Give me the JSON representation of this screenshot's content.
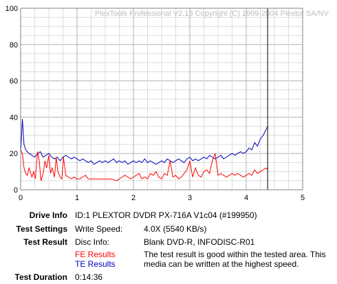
{
  "chart_data": {
    "type": "line",
    "watermark": "PlexTools Professional V2.18 Copyright (C) 1999-2004 Plextor SA/NV",
    "xlim": [
      0,
      5
    ],
    "ylim": [
      0,
      100
    ],
    "x_ticks": [
      0,
      1,
      2,
      3,
      4,
      5
    ],
    "y_ticks": [
      0,
      20,
      40,
      60,
      80,
      100
    ],
    "grid": true,
    "vertical_marker_x": 4.38,
    "series": [
      {
        "color": "#0000c0",
        "x": [
          0.0,
          0.03,
          0.06,
          0.09,
          0.12,
          0.15,
          0.2,
          0.25,
          0.3,
          0.35,
          0.4,
          0.45,
          0.5,
          0.55,
          0.6,
          0.65,
          0.7,
          0.75,
          0.8,
          0.85,
          0.9,
          0.95,
          1.0,
          1.05,
          1.1,
          1.15,
          1.2,
          1.25,
          1.3,
          1.35,
          1.4,
          1.45,
          1.5,
          1.55,
          1.6,
          1.65,
          1.7,
          1.75,
          1.8,
          1.85,
          1.9,
          1.95,
          2.0,
          2.05,
          2.1,
          2.15,
          2.2,
          2.25,
          2.3,
          2.35,
          2.4,
          2.45,
          2.5,
          2.55,
          2.6,
          2.65,
          2.7,
          2.75,
          2.8,
          2.85,
          2.9,
          2.95,
          3.0,
          3.05,
          3.1,
          3.15,
          3.2,
          3.25,
          3.3,
          3.35,
          3.4,
          3.45,
          3.5,
          3.55,
          3.6,
          3.65,
          3.7,
          3.75,
          3.8,
          3.85,
          3.9,
          3.95,
          4.0,
          4.05,
          4.1,
          4.15,
          4.2,
          4.25,
          4.3,
          4.35,
          4.38
        ],
        "y": [
          20,
          39,
          25,
          22,
          21,
          20,
          19,
          18,
          20,
          21,
          18,
          19,
          20,
          18,
          17,
          18,
          16,
          18,
          19,
          18,
          17,
          18,
          17,
          16,
          17,
          16,
          15,
          16,
          14,
          15,
          16,
          15,
          16,
          15,
          16,
          17,
          15,
          16,
          15,
          16,
          14,
          15,
          16,
          15,
          16,
          15,
          17,
          15,
          16,
          15,
          14,
          15,
          16,
          15,
          17,
          16,
          15,
          16,
          17,
          16,
          15,
          17,
          18,
          16,
          17,
          16,
          17,
          18,
          17,
          19,
          18,
          17,
          18,
          19,
          17,
          18,
          19,
          20,
          19,
          20,
          21,
          20,
          21,
          23,
          22,
          26,
          24,
          28,
          30,
          33,
          35
        ]
      },
      {
        "color": "#ff0000",
        "x": [
          0.0,
          0.03,
          0.06,
          0.09,
          0.12,
          0.15,
          0.2,
          0.23,
          0.26,
          0.3,
          0.33,
          0.36,
          0.4,
          0.43,
          0.46,
          0.5,
          0.53,
          0.56,
          0.6,
          0.63,
          0.66,
          0.7,
          0.73,
          0.76,
          0.8,
          0.85,
          0.9,
          0.95,
          1.0,
          1.05,
          1.1,
          1.15,
          1.2,
          1.25,
          1.3,
          1.4,
          1.5,
          1.6,
          1.7,
          1.75,
          1.8,
          1.85,
          1.9,
          1.95,
          2.0,
          2.05,
          2.1,
          2.15,
          2.2,
          2.25,
          2.3,
          2.35,
          2.4,
          2.45,
          2.5,
          2.55,
          2.6,
          2.65,
          2.7,
          2.75,
          2.8,
          2.85,
          2.9,
          2.95,
          3.0,
          3.05,
          3.1,
          3.15,
          3.2,
          3.25,
          3.3,
          3.35,
          3.4,
          3.45,
          3.5,
          3.55,
          3.6,
          3.65,
          3.7,
          3.75,
          3.8,
          3.85,
          3.9,
          3.95,
          4.0,
          4.05,
          4.1,
          4.15,
          4.2,
          4.25,
          4.3,
          4.35,
          4.38
        ],
        "y": [
          22,
          20,
          12,
          9,
          8,
          12,
          7,
          10,
          6,
          21,
          16,
          5,
          9,
          16,
          12,
          19,
          9,
          12,
          7,
          18,
          10,
          7,
          6,
          18,
          8,
          7,
          6,
          7,
          6,
          6,
          7,
          8,
          6,
          6,
          6,
          6,
          6,
          6,
          5,
          6,
          7,
          8,
          7,
          6,
          7,
          8,
          9,
          6,
          7,
          6,
          9,
          8,
          10,
          7,
          6,
          9,
          8,
          16,
          7,
          8,
          6,
          7,
          9,
          11,
          16,
          7,
          12,
          8,
          7,
          10,
          11,
          9,
          16,
          20,
          8,
          9,
          8,
          7,
          8,
          9,
          8,
          9,
          8,
          7,
          8,
          9,
          8,
          11,
          9,
          10,
          11,
          12,
          11
        ]
      }
    ]
  },
  "info": {
    "drive_info_label": "Drive Info",
    "drive_info_value": "ID:1 PLEXTOR DVDR PX-716A V1c04 (#199950)",
    "test_settings_label": "Test Settings",
    "write_speed_label": "Write Speed:",
    "write_speed_value": "4.0X (5540 KB/s)",
    "test_result_label": "Test Result",
    "disc_info_label": "Disc Info:",
    "disc_info_value": "Blank DVD-R, INFODISC-R01",
    "fe_results_label": "FE Results",
    "te_results_label": "TE Results",
    "result_text": "The test result is good within the tested area. This media can be written at the highest speed.",
    "test_duration_label": "Test Duration",
    "test_duration_value": "0:14:36",
    "fe_color": "#ff0000",
    "te_color": "#0000c0"
  }
}
